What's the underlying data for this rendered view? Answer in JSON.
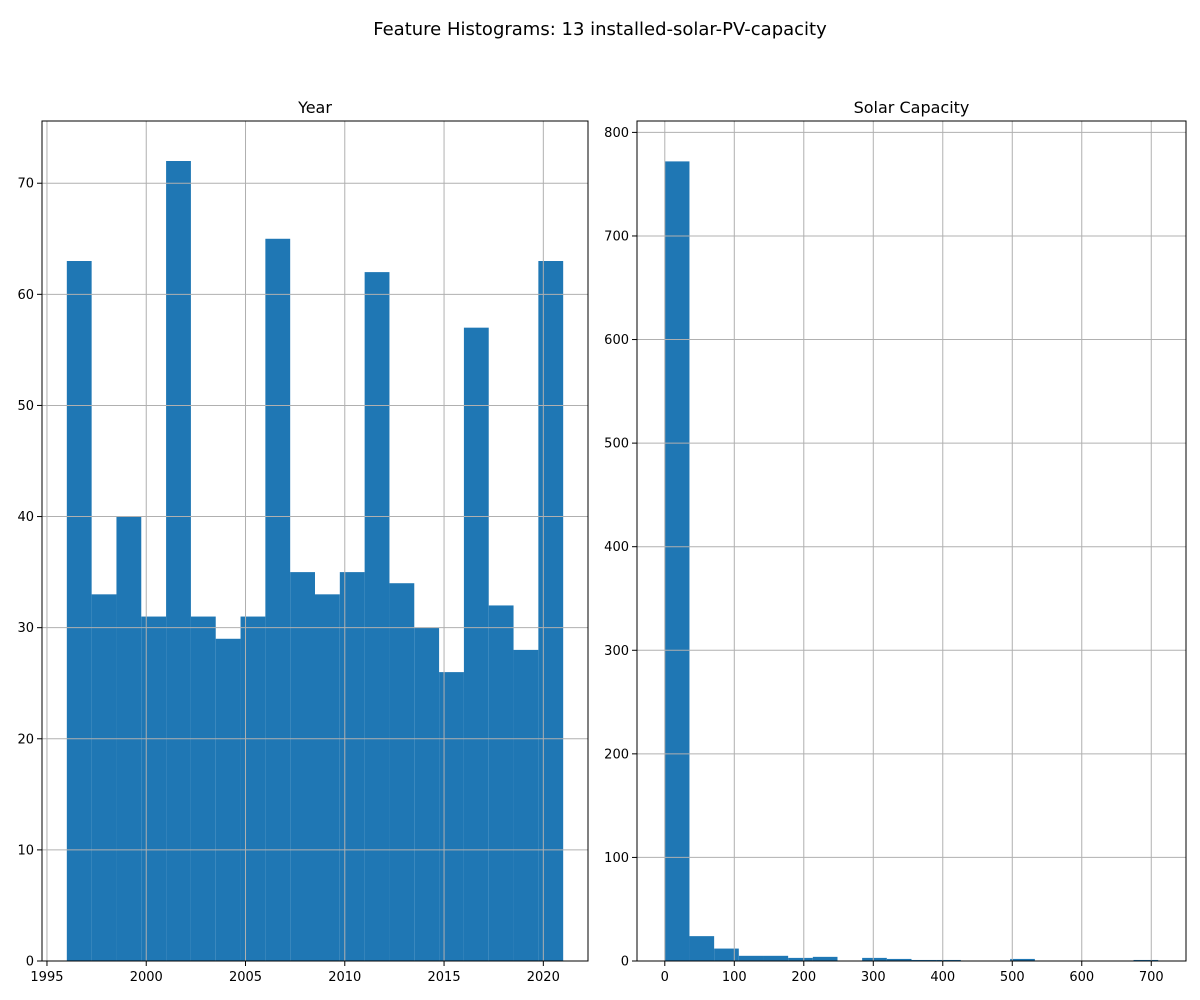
{
  "figure": {
    "suptitle": "Feature Histograms: 13 installed-solar-PV-capacity"
  },
  "colors": {
    "bar": "#1f77b4",
    "grid": "#b0b0b0",
    "axis": "#000000",
    "background": "#ffffff"
  },
  "chart_data": [
    {
      "type": "bar",
      "title": "Year",
      "xlabel": "",
      "ylabel": "",
      "grid": true,
      "xlim": [
        1994.75,
        2022.25
      ],
      "ylim": [
        0,
        75.6
      ],
      "xticks": [
        1995,
        2000,
        2005,
        2010,
        2015,
        2020
      ],
      "xtick_labels": [
        "1995",
        "2000",
        "2005",
        "2010",
        "2015",
        "2020"
      ],
      "yticks": [
        0,
        10,
        20,
        30,
        40,
        50,
        60,
        70
      ],
      "ytick_labels": [
        "0",
        "10",
        "20",
        "30",
        "40",
        "50",
        "60",
        "70"
      ],
      "bin_edges": [
        1996,
        1997.25,
        1998.5,
        1999.75,
        2001,
        2002.25,
        2003.5,
        2004.75,
        2006,
        2007.25,
        2008.5,
        2009.75,
        2011,
        2012.25,
        2013.5,
        2014.75,
        2016,
        2017.25,
        2018.5,
        2019.75,
        2021
      ],
      "values": [
        63,
        33,
        40,
        31,
        72,
        31,
        29,
        31,
        65,
        35,
        33,
        35,
        62,
        34,
        30,
        26,
        57,
        32,
        28,
        63
      ]
    },
    {
      "type": "bar",
      "title": "Solar Capacity",
      "xlabel": "",
      "ylabel": "",
      "grid": true,
      "xlim": [
        -40,
        750
      ],
      "ylim": [
        0,
        811
      ],
      "xticks": [
        0,
        100,
        200,
        300,
        400,
        500,
        600,
        700
      ],
      "xtick_labels": [
        "0",
        "100",
        "200",
        "300",
        "400",
        "500",
        "600",
        "700"
      ],
      "yticks": [
        0,
        100,
        200,
        300,
        400,
        500,
        600,
        700,
        800
      ],
      "ytick_labels": [
        "0",
        "100",
        "200",
        "300",
        "400",
        "500",
        "600",
        "700",
        "800"
      ],
      "bin_edges": [
        0,
        35.5,
        71,
        106.5,
        142,
        177.5,
        213,
        248.5,
        284,
        319.5,
        355,
        390.5,
        426,
        461.5,
        497,
        532.5,
        568,
        603.5,
        639,
        674.5,
        710
      ],
      "values": [
        772,
        24,
        12,
        5,
        5,
        3,
        4,
        0,
        3,
        2,
        1,
        1,
        0,
        0,
        2,
        0,
        0,
        0,
        0,
        1
      ]
    }
  ]
}
